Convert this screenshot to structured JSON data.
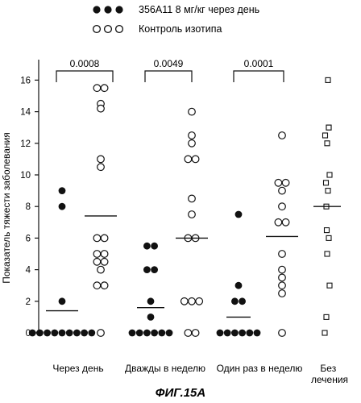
{
  "chart_data": {
    "type": "scatter",
    "title": "",
    "ylabel": "Показатель тяжести заболевания",
    "ylim": [
      0,
      17
    ],
    "yticks": [
      0,
      2,
      4,
      6,
      8,
      10,
      12,
      14,
      16
    ],
    "legend": {
      "placement": "top-left",
      "entries": [
        {
          "name": "356A11 8 мг/кг через день",
          "marker": "filled-circle"
        },
        {
          "name": "Контроль изотипа",
          "marker": "open-circle"
        }
      ]
    },
    "categories": [
      "Через день",
      "Дважды в неделю",
      "Один раз в неделю",
      "Без лечения"
    ],
    "groups": [
      {
        "category": "Через день",
        "series": "356A11 8 мг/кг через день",
        "marker": "filled-circle",
        "mean": 1.4,
        "values": [
          9,
          8,
          2,
          0,
          0,
          0,
          0,
          0,
          0,
          0,
          0,
          0
        ]
      },
      {
        "category": "Через день",
        "series": "Контроль изотипа",
        "marker": "open-circle",
        "mean": 7.4,
        "values": [
          15.5,
          15.5,
          14.5,
          14.2,
          11,
          10.5,
          6,
          6,
          5,
          5,
          4.5,
          4.5,
          4,
          3,
          3,
          0
        ]
      },
      {
        "category": "Дважды в неделю",
        "series": "356A11 8 мг/кг через день",
        "marker": "filled-circle",
        "mean": 1.6,
        "values": [
          5.5,
          5.5,
          4,
          4,
          2,
          1,
          0,
          0,
          0,
          0,
          0,
          0
        ]
      },
      {
        "category": "Дважды в неделю",
        "series": "Контроль изотипа",
        "marker": "open-circle",
        "mean": 6,
        "values": [
          14,
          12.5,
          12,
          11,
          11,
          8.5,
          7.5,
          6,
          6,
          2,
          2,
          2,
          0,
          0
        ]
      },
      {
        "category": "Один раз в неделю",
        "series": "356A11 8 мг/кг через день",
        "marker": "filled-circle",
        "mean": 1,
        "values": [
          7.5,
          3,
          2,
          2,
          0,
          0,
          0,
          0,
          0,
          0
        ]
      },
      {
        "category": "Один раз в неделю",
        "series": "Контроль изотипа",
        "marker": "open-circle",
        "mean": 6.1,
        "values": [
          12.5,
          9.5,
          9.5,
          9,
          8,
          7,
          7,
          5,
          4,
          3.5,
          3,
          2.5,
          0
        ]
      },
      {
        "category": "Без лечения",
        "series": "",
        "marker": "open-square",
        "mean": 8,
        "values": [
          16,
          13,
          13,
          12.5,
          12,
          10,
          9.5,
          9,
          8,
          6.5,
          6,
          5,
          3,
          1,
          0
        ]
      }
    ],
    "comparisons": [
      {
        "category": "Через день",
        "p_value": "0.0008"
      },
      {
        "category": "Дважды в неделю",
        "p_value": "0.0049"
      },
      {
        "category": "Один раз в неделю",
        "p_value": "0.0001"
      }
    ],
    "grid": false
  },
  "caption": "ФИГ.15А"
}
